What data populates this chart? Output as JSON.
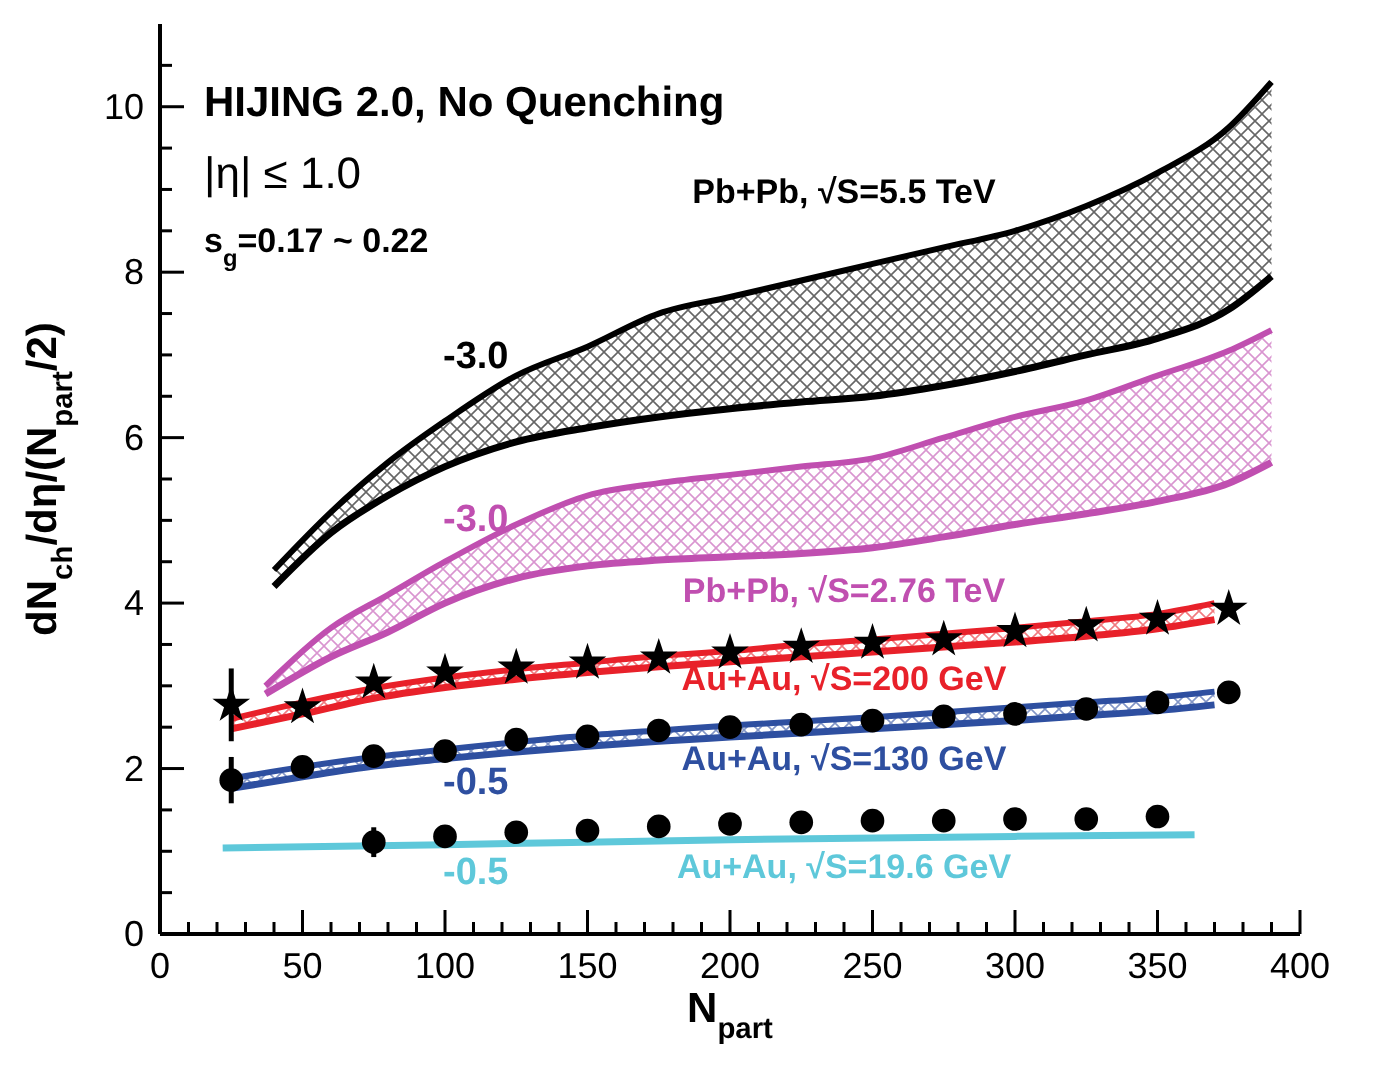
{
  "chart_data": {
    "type": "line",
    "title": "HIJING 2.0, No Quenching",
    "xlabel": "N$_{part}$",
    "ylabel": "dN$_{ch}$/dη/(N$_{part}$/2)",
    "xlim": [
      0,
      400
    ],
    "ylim": [
      0,
      11
    ],
    "xticks": [
      0,
      {
        "value": 10,
        "label": null
      },
      {
        "value": 20,
        "label": null
      },
      {
        "value": 30,
        "label": null
      },
      {
        "value": 40,
        "label": null
      },
      50,
      {
        "value": 60,
        "label": null
      },
      {
        "value": 70,
        "label": null
      },
      {
        "value": 80,
        "label": null
      },
      {
        "value": 90,
        "label": null
      },
      100,
      {
        "value": 110,
        "label": null
      },
      {
        "value": 120,
        "label": null
      },
      {
        "value": 130,
        "label": null
      },
      {
        "value": 140,
        "label": null
      },
      150,
      {
        "value": 160,
        "label": null
      },
      {
        "value": 170,
        "label": null
      },
      {
        "value": 180,
        "label": null
      },
      {
        "value": 190,
        "label": null
      },
      200,
      {
        "value": 210,
        "label": null
      },
      {
        "value": 220,
        "label": null
      },
      {
        "value": 230,
        "label": null
      },
      {
        "value": 240,
        "label": null
      },
      250,
      {
        "value": 260,
        "label": null
      },
      {
        "value": 270,
        "label": null
      },
      {
        "value": 280,
        "label": null
      },
      {
        "value": 290,
        "label": null
      },
      300,
      {
        "value": 310,
        "label": null
      },
      {
        "value": 320,
        "label": null
      },
      {
        "value": 330,
        "label": null
      },
      {
        "value": 340,
        "label": null
      },
      350,
      {
        "value": 360,
        "label": null
      },
      {
        "value": 370,
        "label": null
      },
      {
        "value": 380,
        "label": null
      },
      {
        "value": 390,
        "label": null
      },
      400
    ],
    "yticks": [
      0,
      {
        "value": 0.5,
        "label": null
      },
      {
        "value": 1,
        "label": null
      },
      {
        "value": 1.5,
        "label": null
      },
      2,
      {
        "value": 2.5,
        "label": null
      },
      {
        "value": 3,
        "label": null
      },
      {
        "value": 3.5,
        "label": null
      },
      4,
      {
        "value": 4.5,
        "label": null
      },
      {
        "value": 5,
        "label": null
      },
      {
        "value": 5.5,
        "label": null
      },
      6,
      {
        "value": 6.5,
        "label": null
      },
      {
        "value": 7,
        "label": null
      },
      {
        "value": 7.5,
        "label": null
      },
      8,
      {
        "value": 8.5,
        "label": null
      },
      {
        "value": 9,
        "label": null
      },
      {
        "value": 9.5,
        "label": null
      },
      10,
      {
        "value": 10.5,
        "label": null
      }
    ],
    "series": [
      {
        "name": "Pb+Pb, √S=5.5 TeV",
        "color": "#000000",
        "x": [
          40,
          60,
          80,
          100,
          125,
          150,
          175,
          200,
          225,
          250,
          275,
          300,
          325,
          350,
          375,
          390
        ],
        "values": [
          4.4,
          5.1,
          5.7,
          6.2,
          6.75,
          7.1,
          7.5,
          7.7,
          7.9,
          8.1,
          8.3,
          8.5,
          8.8,
          9.2,
          9.75,
          10.3
        ],
        "upper": [
          4.4,
          5.1,
          5.7,
          6.2,
          6.75,
          7.1,
          7.5,
          7.7,
          7.9,
          8.1,
          8.3,
          8.5,
          8.8,
          9.2,
          9.75,
          10.3
        ],
        "lower": [
          4.2,
          4.85,
          5.3,
          5.65,
          5.95,
          6.12,
          6.25,
          6.35,
          6.43,
          6.5,
          6.63,
          6.8,
          7.0,
          7.2,
          7.55,
          7.95
        ]
      },
      {
        "name": "Pb+Pb, √S=2.76 TeV",
        "color": "#c04fb0",
        "x": [
          37,
          60,
          80,
          100,
          125,
          150,
          175,
          200,
          225,
          250,
          275,
          300,
          325,
          350,
          375,
          390
        ],
        "values": [
          3.0,
          3.7,
          4.1,
          4.5,
          4.95,
          5.3,
          5.45,
          5.55,
          5.65,
          5.75,
          6.0,
          6.25,
          6.45,
          6.75,
          7.05,
          7.3
        ],
        "upper": [
          3.0,
          3.7,
          4.1,
          4.5,
          4.95,
          5.3,
          5.45,
          5.55,
          5.65,
          5.75,
          6.0,
          6.25,
          6.45,
          6.75,
          7.05,
          7.3
        ],
        "lower": [
          2.9,
          3.35,
          3.65,
          4.0,
          4.3,
          4.45,
          4.52,
          4.56,
          4.6,
          4.67,
          4.8,
          4.95,
          5.08,
          5.23,
          5.45,
          5.7
        ]
      },
      {
        "name": "Au+Au, √S=200 GeV",
        "color": "#e8212a",
        "x": [
          25,
          50,
          75,
          100,
          125,
          150,
          175,
          200,
          225,
          250,
          275,
          300,
          325,
          350,
          370
        ],
        "values": [
          2.6,
          2.8,
          2.97,
          3.1,
          3.2,
          3.28,
          3.36,
          3.42,
          3.5,
          3.56,
          3.63,
          3.7,
          3.78,
          3.87,
          4.0
        ],
        "upper": [
          2.6,
          2.8,
          2.97,
          3.1,
          3.2,
          3.28,
          3.36,
          3.42,
          3.5,
          3.56,
          3.63,
          3.7,
          3.78,
          3.87,
          4.0
        ],
        "lower": [
          2.48,
          2.66,
          2.85,
          2.98,
          3.08,
          3.16,
          3.23,
          3.29,
          3.35,
          3.41,
          3.47,
          3.53,
          3.6,
          3.69,
          3.8
        ]
      },
      {
        "name": "Au+Au, √S=130 GeV",
        "color": "#2e4fa0",
        "x": [
          25,
          50,
          75,
          100,
          125,
          150,
          175,
          200,
          225,
          250,
          275,
          300,
          325,
          350,
          370
        ],
        "values": [
          1.88,
          2.02,
          2.14,
          2.23,
          2.32,
          2.4,
          2.46,
          2.52,
          2.57,
          2.62,
          2.68,
          2.74,
          2.8,
          2.86,
          2.93
        ],
        "upper": [
          1.88,
          2.02,
          2.14,
          2.23,
          2.32,
          2.4,
          2.46,
          2.52,
          2.57,
          2.62,
          2.68,
          2.74,
          2.8,
          2.86,
          2.93
        ],
        "lower": [
          1.76,
          1.9,
          2.03,
          2.12,
          2.2,
          2.27,
          2.33,
          2.38,
          2.43,
          2.48,
          2.53,
          2.58,
          2.64,
          2.7,
          2.77
        ]
      },
      {
        "color": "#000000",
        "x": [
          40,
          60,
          80,
          100,
          125,
          150,
          175,
          200,
          225,
          250,
          275,
          300,
          325,
          350,
          375,
          390
        ],
        "values": [
          4.2,
          4.85,
          5.3,
          5.65,
          5.95,
          6.12,
          6.25,
          6.35,
          6.43,
          6.5,
          6.63,
          6.8,
          7.0,
          7.2,
          7.55,
          7.95
        ]
      },
      {
        "color": "#c04fb0",
        "x": [
          37,
          60,
          80,
          100,
          125,
          150,
          175,
          200,
          225,
          250,
          275,
          300,
          325,
          350,
          375,
          390
        ],
        "values": [
          2.9,
          3.35,
          3.65,
          4.0,
          4.3,
          4.45,
          4.52,
          4.56,
          4.6,
          4.67,
          4.8,
          4.95,
          5.08,
          5.23,
          5.45,
          5.7
        ]
      },
      {
        "color": "#e8212a",
        "x": [
          25,
          50,
          75,
          100,
          125,
          150,
          175,
          200,
          225,
          250,
          275,
          300,
          325,
          350,
          370
        ],
        "values": [
          2.48,
          2.66,
          2.85,
          2.98,
          3.08,
          3.16,
          3.23,
          3.29,
          3.35,
          3.41,
          3.47,
          3.53,
          3.6,
          3.69,
          3.8
        ]
      },
      {
        "color": "#2e4fa0",
        "x": [
          25,
          50,
          75,
          100,
          125,
          150,
          175,
          200,
          225,
          250,
          275,
          300,
          325,
          350,
          370
        ],
        "values": [
          1.76,
          1.9,
          2.03,
          2.12,
          2.2,
          2.27,
          2.33,
          2.38,
          2.43,
          2.48,
          2.53,
          2.58,
          2.64,
          2.7,
          2.77
        ]
      },
      {
        "name": "Au+Au, √S=19.6 GeV",
        "color": "#5ec8da",
        "x": [
          22,
          100,
          200,
          300,
          363
        ],
        "values": [
          1.04,
          1.08,
          1.14,
          1.18,
          1.2
        ]
      },
      {
        "type": "scatter",
        "marker": "star",
        "color": "#000000",
        "x": [
          25,
          50,
          75,
          100,
          125,
          150,
          175,
          200,
          225,
          250,
          275,
          300,
          325,
          350,
          375
        ],
        "values": [
          2.77,
          2.74,
          3.04,
          3.16,
          3.22,
          3.28,
          3.34,
          3.4,
          3.47,
          3.52,
          3.56,
          3.66,
          3.73,
          3.81,
          3.93
        ],
        "errors": [
          0.44,
          null,
          null,
          null,
          null,
          null,
          null,
          null,
          null,
          null,
          null,
          null,
          null,
          null,
          null
        ]
      },
      {
        "type": "scatter",
        "marker": "circle",
        "color": "#000000",
        "x": [
          25,
          50,
          75,
          100,
          125,
          150,
          175,
          200,
          225,
          250,
          275,
          300,
          325,
          350,
          375
        ],
        "values": [
          1.86,
          2.02,
          2.15,
          2.21,
          2.35,
          2.39,
          2.46,
          2.5,
          2.53,
          2.58,
          2.63,
          2.66,
          2.72,
          2.8,
          2.92
        ],
        "errors": [
          0.28,
          null,
          null,
          null,
          null,
          null,
          null,
          null,
          null,
          null,
          null,
          null,
          null,
          null,
          null
        ]
      },
      {
        "type": "scatter",
        "marker": "circle",
        "color": "#000000",
        "x": [
          75,
          100,
          125,
          150,
          175,
          200,
          225,
          250,
          275,
          300,
          325,
          350
        ],
        "values": [
          1.11,
          1.18,
          1.23,
          1.25,
          1.3,
          1.33,
          1.35,
          1.37,
          1.37,
          1.39,
          1.39,
          1.42
        ],
        "errors": [
          0.18,
          null,
          null,
          null,
          null,
          null,
          null,
          null,
          null,
          null,
          null,
          null
        ]
      }
    ],
    "annotations": [
      "|η| ≤ 1.0",
      "s$_{g}$=0.17 ~ 0.22",
      "-3.0",
      "-3.0",
      "-0.5",
      "-0.5"
    ]
  }
}
